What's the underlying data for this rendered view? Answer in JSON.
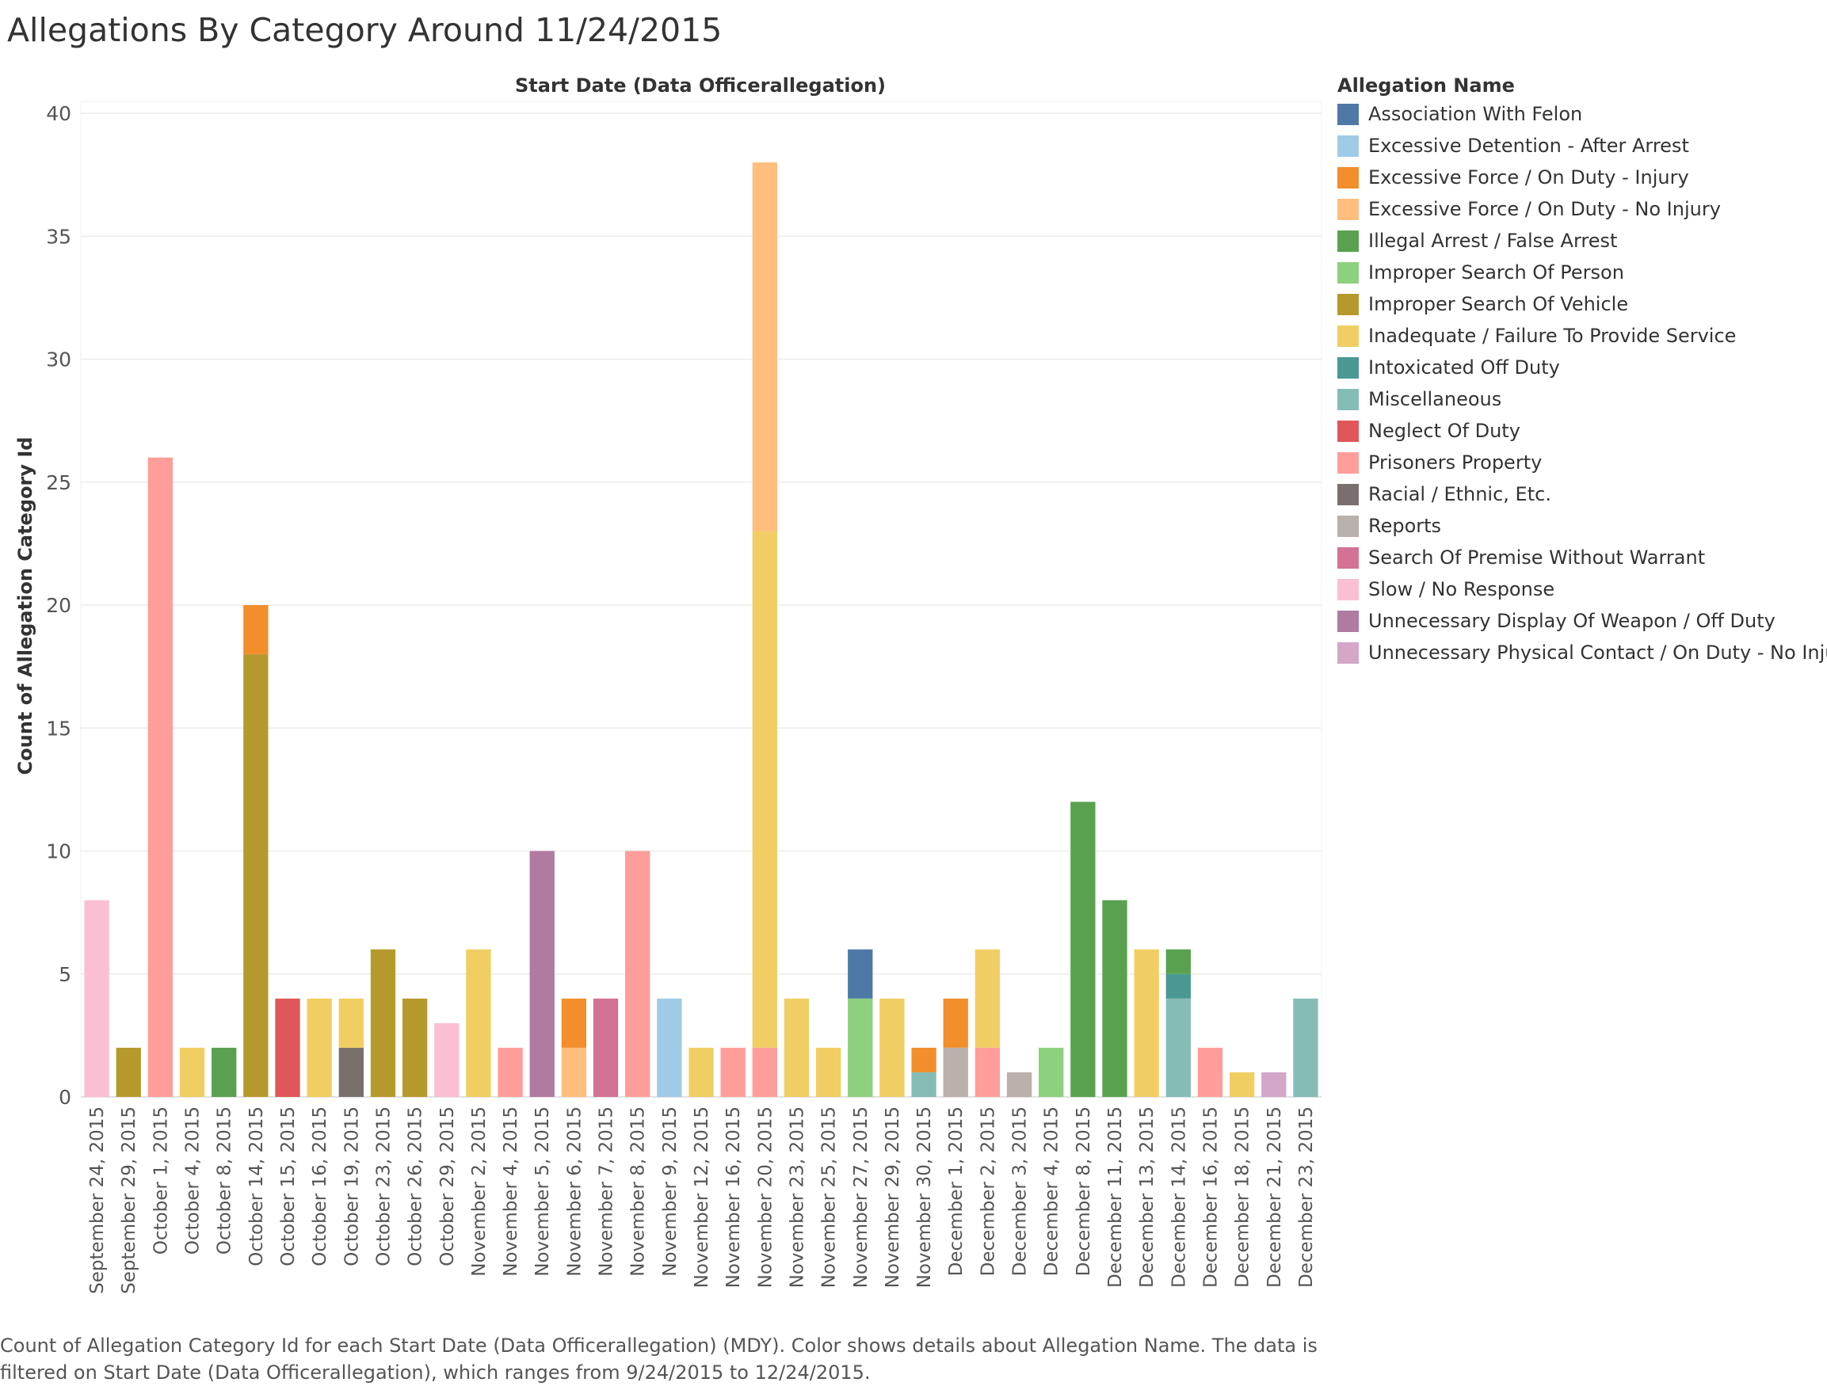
{
  "page": {
    "title": "Allegations By Category Around 11/24/2015",
    "caption": "Count of Allegation Category Id for each Start Date (Data Officerallegation) (MDY).  Color shows details about Allegation Name. The data is filtered on Start Date (Data Officerallegation), which ranges from 9/24/2015 to 12/24/2015."
  },
  "legend": {
    "title": "Allegation Name",
    "items": [
      {
        "name": "Association With Felon",
        "color": "#4e79a7"
      },
      {
        "name": "Excessive Detention - After Arrest",
        "color": "#a0cbe8"
      },
      {
        "name": "Excessive Force / On Duty - Injury",
        "color": "#f28e2b"
      },
      {
        "name": "Excessive Force / On Duty - No Injury",
        "color": "#ffbe7d"
      },
      {
        "name": "Illegal Arrest / False Arrest",
        "color": "#59a14f"
      },
      {
        "name": "Improper Search Of Person",
        "color": "#8cd17d"
      },
      {
        "name": "Improper Search Of Vehicle",
        "color": "#b6992d"
      },
      {
        "name": "Inadequate / Failure To Provide Service",
        "color": "#f1ce63"
      },
      {
        "name": "Intoxicated Off Duty",
        "color": "#499894"
      },
      {
        "name": "Miscellaneous",
        "color": "#86bcb6"
      },
      {
        "name": "Neglect Of Duty",
        "color": "#e15759"
      },
      {
        "name": "Prisoners Property",
        "color": "#ff9d9a"
      },
      {
        "name": "Racial / Ethnic, Etc.",
        "color": "#79706e"
      },
      {
        "name": "Reports",
        "color": "#bab0ac"
      },
      {
        "name": "Search Of Premise Without Warrant",
        "color": "#d37295"
      },
      {
        "name": "Slow / No Response",
        "color": "#fabfd2"
      },
      {
        "name": "Unnecessary Display Of Weapon / Off Duty",
        "color": "#b07aa1"
      },
      {
        "name": "Unnecessary Physical Contact / On Duty - No Injury",
        "color": "#d4a6c8"
      }
    ]
  },
  "chart_data": {
    "type": "bar",
    "stacked": true,
    "xlabel": "Start Date (Data Officerallegation)",
    "ylabel": "Count of Allegation Category Id",
    "ylim": [
      0,
      40
    ],
    "yticks": [
      0,
      5,
      10,
      15,
      20,
      25,
      30,
      35,
      40
    ],
    "grid": true,
    "legend_position": "right",
    "categories": [
      "September 24, 2015",
      "September 29, 2015",
      "October 1, 2015",
      "October 4, 2015",
      "October 8, 2015",
      "October 14, 2015",
      "October 15, 2015",
      "October 16, 2015",
      "October 19, 2015",
      "October 23, 2015",
      "October 26, 2015",
      "October 29, 2015",
      "November 2, 2015",
      "November 4, 2015",
      "November 5, 2015",
      "November 6, 2015",
      "November 7, 2015",
      "November 8, 2015",
      "November 9, 2015",
      "November 12, 2015",
      "November 16, 2015",
      "November 20, 2015",
      "November 23, 2015",
      "November 25, 2015",
      "November 27, 2015",
      "November 29, 2015",
      "November 30, 2015",
      "December 1, 2015",
      "December 2, 2015",
      "December 3, 2015",
      "December 4, 2015",
      "December 8, 2015",
      "December 11, 2015",
      "December 13, 2015",
      "December 14, 2015",
      "December 16, 2015",
      "December 18, 2015",
      "December 21, 2015",
      "December 23, 2015"
    ],
    "stacks": [
      [
        {
          "series": "Slow / No Response",
          "value": 8
        }
      ],
      [
        {
          "series": "Improper Search Of Vehicle",
          "value": 2
        }
      ],
      [
        {
          "series": "Prisoners Property",
          "value": 26
        }
      ],
      [
        {
          "series": "Inadequate / Failure To Provide Service",
          "value": 2
        }
      ],
      [
        {
          "series": "Illegal Arrest / False Arrest",
          "value": 2
        }
      ],
      [
        {
          "series": "Improper Search Of Vehicle",
          "value": 18
        },
        {
          "series": "Excessive Force / On Duty - Injury",
          "value": 2
        }
      ],
      [
        {
          "series": "Neglect Of Duty",
          "value": 4
        }
      ],
      [
        {
          "series": "Inadequate / Failure To Provide Service",
          "value": 4
        }
      ],
      [
        {
          "series": "Racial / Ethnic, Etc.",
          "value": 2
        },
        {
          "series": "Inadequate / Failure To Provide Service",
          "value": 2
        }
      ],
      [
        {
          "series": "Improper Search Of Vehicle",
          "value": 6
        }
      ],
      [
        {
          "series": "Improper Search Of Vehicle",
          "value": 4
        }
      ],
      [
        {
          "series": "Slow / No Response",
          "value": 3
        }
      ],
      [
        {
          "series": "Inadequate / Failure To Provide Service",
          "value": 6
        }
      ],
      [
        {
          "series": "Prisoners Property",
          "value": 2
        }
      ],
      [
        {
          "series": "Unnecessary Display Of Weapon / Off Duty",
          "value": 10
        }
      ],
      [
        {
          "series": "Excessive Force / On Duty - No Injury",
          "value": 2
        },
        {
          "series": "Excessive Force / On Duty - Injury",
          "value": 2
        }
      ],
      [
        {
          "series": "Search Of Premise Without Warrant",
          "value": 4
        }
      ],
      [
        {
          "series": "Prisoners Property",
          "value": 10
        }
      ],
      [
        {
          "series": "Excessive Detention - After Arrest",
          "value": 4
        }
      ],
      [
        {
          "series": "Inadequate / Failure To Provide Service",
          "value": 2
        }
      ],
      [
        {
          "series": "Prisoners Property",
          "value": 2
        }
      ],
      [
        {
          "series": "Prisoners Property",
          "value": 2
        },
        {
          "series": "Inadequate / Failure To Provide Service",
          "value": 21
        },
        {
          "series": "Excessive Force / On Duty - No Injury",
          "value": 15
        }
      ],
      [
        {
          "series": "Inadequate / Failure To Provide Service",
          "value": 4
        }
      ],
      [
        {
          "series": "Inadequate / Failure To Provide Service",
          "value": 2
        }
      ],
      [
        {
          "series": "Improper Search Of Person",
          "value": 4
        },
        {
          "series": "Association With Felon",
          "value": 2
        }
      ],
      [
        {
          "series": "Inadequate / Failure To Provide Service",
          "value": 4
        }
      ],
      [
        {
          "series": "Miscellaneous",
          "value": 1
        },
        {
          "series": "Excessive Force / On Duty - Injury",
          "value": 1
        }
      ],
      [
        {
          "series": "Reports",
          "value": 2
        },
        {
          "series": "Excessive Force / On Duty - Injury",
          "value": 2
        }
      ],
      [
        {
          "series": "Prisoners Property",
          "value": 2
        },
        {
          "series": "Inadequate / Failure To Provide Service",
          "value": 4
        }
      ],
      [
        {
          "series": "Reports",
          "value": 1
        }
      ],
      [
        {
          "series": "Improper Search Of Person",
          "value": 2
        }
      ],
      [
        {
          "series": "Illegal Arrest / False Arrest",
          "value": 12
        }
      ],
      [
        {
          "series": "Illegal Arrest / False Arrest",
          "value": 8
        }
      ],
      [
        {
          "series": "Inadequate / Failure To Provide Service",
          "value": 6
        }
      ],
      [
        {
          "series": "Miscellaneous",
          "value": 4
        },
        {
          "series": "Intoxicated Off Duty",
          "value": 1
        },
        {
          "series": "Illegal Arrest / False Arrest",
          "value": 1
        }
      ],
      [
        {
          "series": "Prisoners Property",
          "value": 2
        }
      ],
      [
        {
          "series": "Inadequate / Failure To Provide Service",
          "value": 1
        }
      ],
      [
        {
          "series": "Unnecessary Physical Contact / On Duty - No Injury",
          "value": 1
        }
      ],
      [
        {
          "series": "Miscellaneous",
          "value": 4
        }
      ]
    ]
  }
}
